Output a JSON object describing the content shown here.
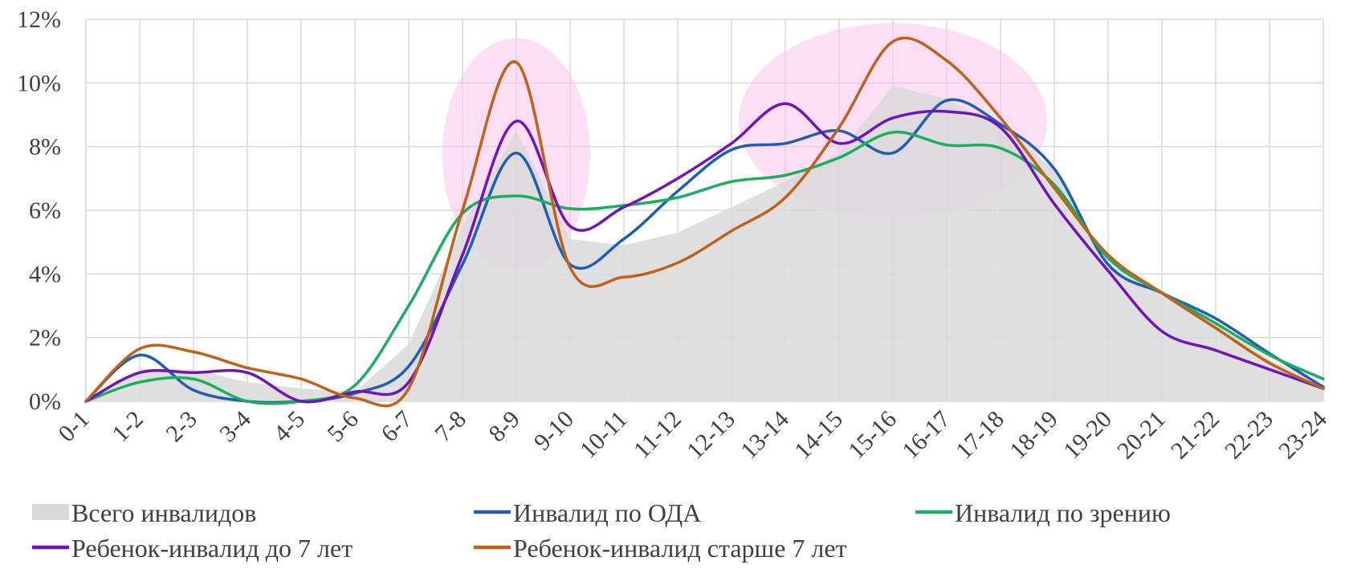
{
  "chart_data": {
    "type": "line",
    "x": [
      "0-1",
      "1-2",
      "2-3",
      "3-4",
      "4-5",
      "5-6",
      "6-7",
      "7-8",
      "8-9",
      "9-10",
      "10-11",
      "11-12",
      "12-13",
      "13-14",
      "14-15",
      "15-16",
      "16-17",
      "17-18",
      "18-19",
      "19-20",
      "20-21",
      "21-22",
      "22-23",
      "23-24"
    ],
    "y_ticks": [
      "0%",
      "2%",
      "4%",
      "6%",
      "8%",
      "10%",
      "12%"
    ],
    "ylim": [
      0,
      12
    ],
    "y_unit": "%",
    "grid": true,
    "legend_position": "bottom",
    "series": [
      {
        "name": "Всего инвалидов",
        "style": "area",
        "color": "#d9d9d9",
        "values": [
          0.0,
          1.0,
          1.0,
          0.6,
          0.4,
          0.3,
          1.8,
          5.5,
          8.5,
          5.1,
          4.9,
          5.3,
          6.1,
          6.9,
          7.8,
          9.9,
          9.5,
          8.6,
          7.3,
          4.3,
          3.5,
          2.5,
          1.3,
          0.5
        ]
      },
      {
        "name": "Инвалид по ОДА",
        "style": "line",
        "color": "#1f5fb3",
        "values": [
          0.0,
          1.45,
          0.35,
          0.0,
          0.0,
          0.25,
          1.1,
          4.3,
          7.8,
          4.3,
          5.1,
          6.6,
          7.9,
          8.1,
          8.5,
          7.8,
          9.45,
          8.7,
          7.3,
          4.3,
          3.4,
          2.6,
          1.5,
          0.45
        ]
      },
      {
        "name": "Инвалид по зрению",
        "style": "line",
        "color": "#1aaf5d",
        "values": [
          0.0,
          0.6,
          0.7,
          0.0,
          0.0,
          0.5,
          3.0,
          5.9,
          6.45,
          6.05,
          6.15,
          6.4,
          6.9,
          7.1,
          7.65,
          8.45,
          8.05,
          7.95,
          6.8,
          4.5,
          3.4,
          2.45,
          1.45,
          0.7
        ]
      },
      {
        "name": "Ребенок-инвалид до 7 лет",
        "style": "line",
        "color": "#7014b8",
        "values": [
          0.0,
          0.9,
          0.9,
          0.9,
          0.0,
          0.3,
          0.6,
          4.6,
          8.8,
          5.5,
          6.1,
          7.0,
          8.1,
          9.35,
          8.1,
          8.9,
          9.1,
          8.6,
          6.2,
          4.1,
          2.2,
          1.6,
          1.0,
          0.4
        ]
      },
      {
        "name": "Ребенок-инвалид старше 7 лет",
        "style": "line",
        "color": "#c0611a",
        "values": [
          0.0,
          1.65,
          1.55,
          1.05,
          0.7,
          0.1,
          0.4,
          6.0,
          10.65,
          4.2,
          3.9,
          4.35,
          5.35,
          6.4,
          8.6,
          11.3,
          10.7,
          8.9,
          6.7,
          4.6,
          3.4,
          2.3,
          1.2,
          0.4
        ]
      }
    ],
    "highlights": [
      {
        "shape": "ellipse",
        "x_center": "8-9",
        "y_center": 7.75,
        "color": "#f9c4ec"
      },
      {
        "shape": "ellipse",
        "x_center": "15-16",
        "y_center": 8.8,
        "color": "#f9c4ec"
      }
    ]
  }
}
